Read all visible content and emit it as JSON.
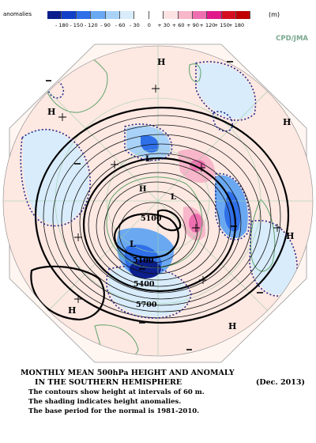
{
  "legend": {
    "label": "anomalies",
    "unit": "(m)",
    "ticks": [
      "- 180",
      "- 150",
      "- 120",
      "- 90",
      "- 60",
      "- 30",
      "0",
      "+ 30",
      "+ 60",
      "+ 90",
      "+ 120",
      "+ 150",
      "+ 180"
    ],
    "colors": [
      "#0b1e8c",
      "#1440c8",
      "#2f6fe8",
      "#6aa8f2",
      "#a9d2f8",
      "#d8ecfb",
      "#ffffff",
      "#ffffff",
      "#fde2e2",
      "#f7b6c9",
      "#ee6fb0",
      "#e01a8a",
      "#d41020",
      "#c00000"
    ]
  },
  "credit": "CPD/JMA",
  "map_labels": {
    "h_left": "H",
    "h_top": "H",
    "h_right": "H",
    "h_right2": "H",
    "h_center": "H",
    "h_bottom_left": "H",
    "h_bottom_right": "H",
    "l_center": "L",
    "l_right": "L",
    "l_upper": "L",
    "c5100a": "5100",
    "c5100b": "5100",
    "c5400": "5400",
    "c5700": "5700"
  },
  "caption": {
    "title1": "MONTHLY MEAN 500hPa HEIGHT AND ANOMALY",
    "title2": "IN THE SOUTHERN HEMISPHERE",
    "date": "(Dec. 2013)",
    "note1": "The contours show height at intervals of 60 m.",
    "note2": "The shading indicates height anomalies.",
    "note3": "The base period for the normal is 1981-2010."
  }
}
